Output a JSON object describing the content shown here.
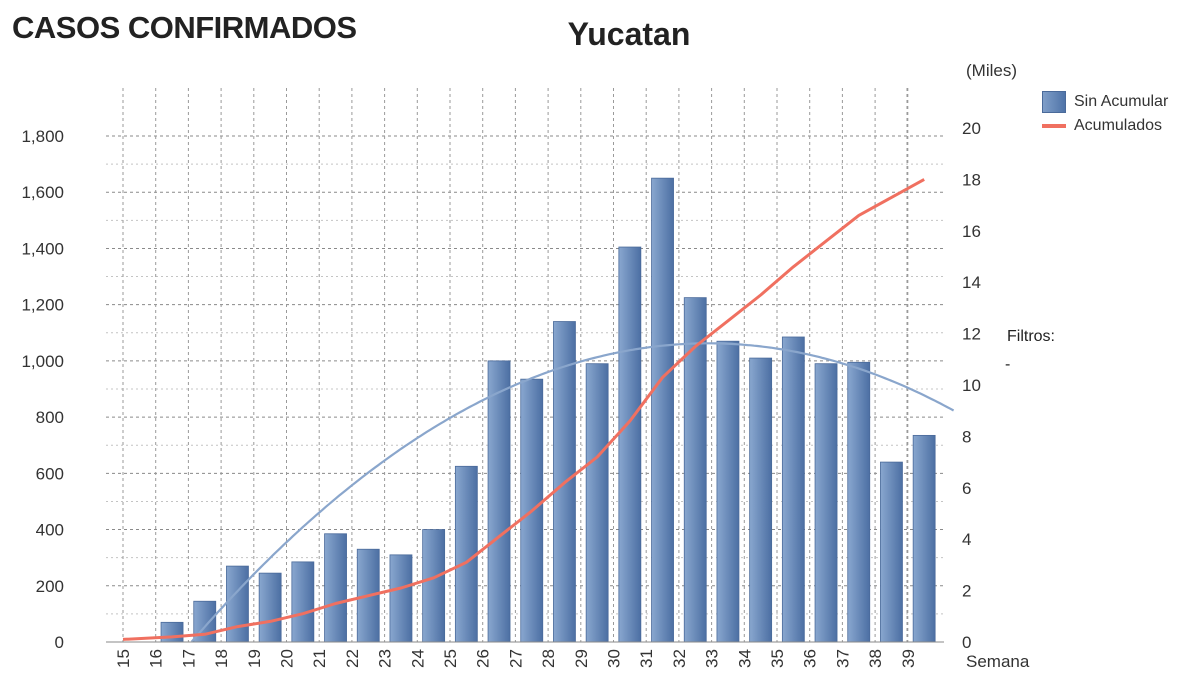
{
  "page_title": "CASOS CONFIRMADOS",
  "filters": {
    "label": "Filtros:",
    "value": "-"
  },
  "chart_data": {
    "type": "bar",
    "title": "Yucatan",
    "xlabel": "Semana",
    "ylabel": "",
    "y2label": "(Miles)",
    "categories": [
      "15",
      "16",
      "17",
      "18",
      "19",
      "20",
      "21",
      "22",
      "23",
      "24",
      "25",
      "26",
      "27",
      "28",
      "29",
      "30",
      "31",
      "32",
      "33",
      "34",
      "35",
      "36",
      "37",
      "38",
      "39"
    ],
    "series": [
      {
        "name": "Sin Acumular",
        "type": "bar",
        "axis": "left",
        "color": "#5b7fb3",
        "values": [
          0,
          70,
          145,
          270,
          245,
          285,
          385,
          330,
          310,
          400,
          625,
          1000,
          935,
          1140,
          990,
          1405,
          1650,
          1225,
          1070,
          1010,
          1085,
          990,
          995,
          640,
          735
        ]
      },
      {
        "name": "Acumulados",
        "type": "line",
        "axis": "right",
        "color": "#f07060",
        "values": [
          0.1,
          0.2,
          0.3,
          0.6,
          0.8,
          1.1,
          1.5,
          1.8,
          2.1,
          2.5,
          3.1,
          4.1,
          5.1,
          6.2,
          7.2,
          8.6,
          10.3,
          11.5,
          12.5,
          13.5,
          14.6,
          15.6,
          16.6,
          17.3,
          18.0
        ]
      }
    ],
    "trendline": {
      "type": "polynomial",
      "color": "#8aa6cc",
      "axis": "left"
    },
    "ylim": [
      0,
      1800
    ],
    "y2lim": [
      0,
      20
    ],
    "yticks": [
      "0",
      "200",
      "400",
      "600",
      "800",
      "1,000",
      "1,200",
      "1,400",
      "1,600",
      "1,800"
    ],
    "y2ticks": [
      "0",
      "2",
      "4",
      "6",
      "8",
      "10",
      "12",
      "14",
      "16",
      "18",
      "20"
    ],
    "grid": true,
    "legend": "top-right"
  }
}
